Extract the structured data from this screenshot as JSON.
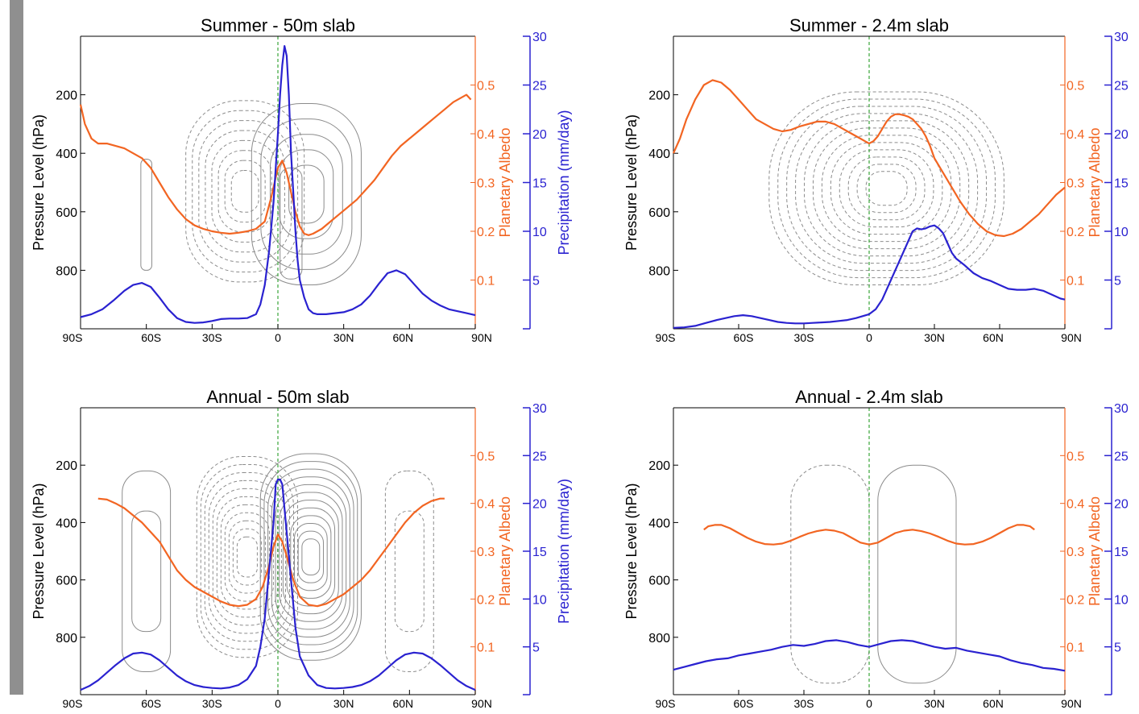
{
  "colors": {
    "albedo": "#f26522",
    "precip": "#2a22d0",
    "contour": "#8c8c8c",
    "equator": "#3aa53a",
    "axis": "#000000"
  },
  "chart_data": [
    {
      "type": "line",
      "title": "Summer - 50m slab",
      "ylabel": "Pressure Level (hPa)",
      "ylabel_albedo": "Planetary Albedo",
      "ylabel_precip": "Precipitation (mm/day)",
      "pressure_ticks": [
        "200",
        "400",
        "600",
        "800"
      ],
      "albedo_ticks": [
        "0.1",
        "0.2",
        "0.3",
        "0.4",
        "0.5"
      ],
      "precip_ticks": [
        "5",
        "10",
        "15",
        "20",
        "25",
        "30"
      ],
      "x_ticks": [
        "90S",
        "60S",
        "30S",
        "0",
        "30N",
        "60N",
        "90N"
      ],
      "xlim": [
        -90,
        90
      ],
      "pressure_lim": [
        0,
        1000
      ],
      "albedo_lim": [
        0,
        0.6
      ],
      "precip_lim": [
        0,
        30
      ],
      "series": [
        {
          "name": "Planetary Albedo",
          "axis": "albedo",
          "x": [
            -90,
            -88,
            -85,
            -82,
            -78,
            -74,
            -70,
            -66,
            -62,
            -58,
            -54,
            -50,
            -46,
            -42,
            -38,
            -34,
            -30,
            -26,
            -22,
            -18,
            -14,
            -10,
            -6,
            -3,
            0,
            2,
            4,
            6,
            8,
            10,
            12,
            14,
            16,
            20,
            24,
            28,
            32,
            36,
            40,
            44,
            48,
            52,
            56,
            60,
            64,
            68,
            72,
            76,
            80,
            84,
            86,
            88
          ],
          "y": [
            0.46,
            0.42,
            0.39,
            0.38,
            0.38,
            0.375,
            0.37,
            0.36,
            0.35,
            0.33,
            0.3,
            0.27,
            0.245,
            0.225,
            0.212,
            0.205,
            0.2,
            0.197,
            0.195,
            0.197,
            0.2,
            0.205,
            0.22,
            0.27,
            0.33,
            0.345,
            0.32,
            0.28,
            0.24,
            0.21,
            0.195,
            0.192,
            0.195,
            0.205,
            0.22,
            0.235,
            0.25,
            0.265,
            0.285,
            0.305,
            0.33,
            0.355,
            0.375,
            0.39,
            0.405,
            0.42,
            0.435,
            0.45,
            0.465,
            0.475,
            0.48,
            0.47
          ]
        },
        {
          "name": "Precipitation",
          "axis": "precip",
          "x": [
            -90,
            -85,
            -80,
            -75,
            -70,
            -66,
            -62,
            -58,
            -54,
            -50,
            -46,
            -42,
            -38,
            -34,
            -30,
            -26,
            -22,
            -18,
            -14,
            -10,
            -8,
            -6,
            -4,
            -2,
            0,
            1,
            2,
            3,
            4,
            5,
            6,
            7,
            8,
            9,
            10,
            12,
            14,
            16,
            18,
            22,
            26,
            30,
            34,
            38,
            42,
            46,
            50,
            54,
            58,
            62,
            66,
            70,
            74,
            78,
            82,
            86,
            90
          ],
          "y": [
            1.2,
            1.5,
            2.0,
            2.9,
            3.9,
            4.5,
            4.7,
            4.3,
            3.2,
            2.0,
            1.1,
            0.7,
            0.6,
            0.65,
            0.8,
            1.0,
            1.05,
            1.05,
            1.1,
            1.5,
            2.5,
            4.5,
            8,
            13,
            20,
            24,
            27,
            29,
            28,
            24,
            18,
            14,
            10,
            7,
            5,
            3.2,
            2.0,
            1.6,
            1.5,
            1.5,
            1.6,
            1.7,
            2.0,
            2.5,
            3.4,
            4.6,
            5.7,
            6.0,
            5.6,
            4.6,
            3.6,
            2.9,
            2.4,
            2.0,
            1.8,
            1.6,
            1.4
          ]
        }
      ]
    },
    {
      "type": "line",
      "title": "Summer - 2.4m slab",
      "ylabel": "Pressure Level (hPa)",
      "ylabel_albedo": "Planetary Albedo",
      "ylabel_precip": "",
      "pressure_ticks": [
        "200",
        "400",
        "600",
        "800"
      ],
      "albedo_ticks": [
        "0.1",
        "0.2",
        "0.3",
        "0.4",
        "0.5"
      ],
      "precip_ticks": [
        "5",
        "10",
        "15",
        "20",
        "25",
        "30"
      ],
      "x_ticks": [
        "90S",
        "60S",
        "30S",
        "0",
        "30N",
        "60N",
        "90N"
      ],
      "xlim": [
        -90,
        90
      ],
      "pressure_lim": [
        0,
        1000
      ],
      "albedo_lim": [
        0,
        0.6
      ],
      "precip_lim": [
        0,
        30
      ],
      "series": [
        {
          "name": "Planetary Albedo",
          "axis": "albedo",
          "x": [
            -90,
            -87,
            -84,
            -80,
            -76,
            -72,
            -68,
            -64,
            -60,
            -56,
            -52,
            -48,
            -44,
            -40,
            -36,
            -32,
            -28,
            -24,
            -20,
            -16,
            -12,
            -8,
            -4,
            -2,
            0,
            2,
            4,
            6,
            8,
            10,
            12,
            14,
            16,
            18,
            20,
            22,
            24,
            26,
            28,
            30,
            34,
            38,
            42,
            46,
            50,
            54,
            58,
            62,
            66,
            70,
            74,
            78,
            82,
            86,
            90
          ],
          "y": [
            0.36,
            0.39,
            0.43,
            0.47,
            0.5,
            0.51,
            0.505,
            0.49,
            0.47,
            0.45,
            0.43,
            0.42,
            0.41,
            0.405,
            0.408,
            0.415,
            0.42,
            0.425,
            0.425,
            0.42,
            0.41,
            0.4,
            0.39,
            0.385,
            0.38,
            0.385,
            0.395,
            0.41,
            0.425,
            0.435,
            0.44,
            0.44,
            0.438,
            0.435,
            0.43,
            0.42,
            0.41,
            0.395,
            0.375,
            0.35,
            0.32,
            0.29,
            0.26,
            0.235,
            0.215,
            0.2,
            0.192,
            0.19,
            0.195,
            0.205,
            0.22,
            0.235,
            0.255,
            0.275,
            0.29
          ]
        },
        {
          "name": "Precipitation",
          "axis": "precip",
          "x": [
            -90,
            -85,
            -80,
            -75,
            -70,
            -66,
            -62,
            -58,
            -54,
            -50,
            -46,
            -42,
            -38,
            -34,
            -30,
            -26,
            -22,
            -18,
            -14,
            -10,
            -6,
            -3,
            0,
            3,
            6,
            9,
            12,
            15,
            18,
            20,
            22,
            24,
            26,
            28,
            30,
            32,
            34,
            36,
            38,
            40,
            44,
            48,
            52,
            56,
            60,
            64,
            68,
            72,
            76,
            80,
            84,
            88,
            90
          ],
          "y": [
            0.1,
            0.15,
            0.3,
            0.6,
            0.9,
            1.1,
            1.3,
            1.4,
            1.3,
            1.1,
            0.9,
            0.7,
            0.6,
            0.55,
            0.55,
            0.6,
            0.65,
            0.7,
            0.8,
            0.9,
            1.1,
            1.3,
            1.5,
            2,
            3,
            4.5,
            6,
            7.5,
            9,
            10,
            10.3,
            10.2,
            10.3,
            10.5,
            10.6,
            10.3,
            9.8,
            8.8,
            7.8,
            7.2,
            6.5,
            5.7,
            5.2,
            4.9,
            4.5,
            4.1,
            4.0,
            4.0,
            4.1,
            3.9,
            3.5,
            3.1,
            3.0
          ]
        }
      ]
    },
    {
      "type": "line",
      "title": "Annual - 50m slab",
      "ylabel": "Pressure Level (hPa)",
      "ylabel_albedo": "Planetary Albedo",
      "ylabel_precip": "Precipitation (mm/day)",
      "pressure_ticks": [
        "200",
        "400",
        "600",
        "800"
      ],
      "albedo_ticks": [
        "0.1",
        "0.2",
        "0.3",
        "0.4",
        "0.5"
      ],
      "precip_ticks": [
        "5",
        "10",
        "15",
        "20",
        "25",
        "30"
      ],
      "x_ticks": [
        "90S",
        "60S",
        "30S",
        "0",
        "30N",
        "60N",
        "90N"
      ],
      "xlim": [
        -90,
        90
      ],
      "pressure_lim": [
        0,
        1000
      ],
      "albedo_lim": [
        0,
        0.6
      ],
      "precip_lim": [
        0,
        30
      ],
      "series": [
        {
          "name": "Planetary Albedo",
          "axis": "albedo",
          "x": [
            -82,
            -78,
            -74,
            -70,
            -66,
            -62,
            -58,
            -54,
            -50,
            -46,
            -42,
            -38,
            -34,
            -30,
            -26,
            -22,
            -18,
            -14,
            -10,
            -7,
            -4,
            -2,
            0,
            2,
            4,
            7,
            10,
            14,
            18,
            22,
            26,
            30,
            34,
            38,
            42,
            46,
            50,
            54,
            58,
            62,
            66,
            70,
            74,
            76
          ],
          "y": [
            0.41,
            0.408,
            0.4,
            0.39,
            0.375,
            0.36,
            0.34,
            0.32,
            0.29,
            0.26,
            0.24,
            0.225,
            0.215,
            0.205,
            0.195,
            0.188,
            0.185,
            0.188,
            0.2,
            0.225,
            0.27,
            0.31,
            0.335,
            0.32,
            0.29,
            0.24,
            0.205,
            0.188,
            0.185,
            0.19,
            0.2,
            0.21,
            0.225,
            0.24,
            0.26,
            0.285,
            0.31,
            0.335,
            0.36,
            0.38,
            0.395,
            0.405,
            0.41,
            0.41
          ]
        },
        {
          "name": "Precipitation",
          "axis": "precip",
          "x": [
            -90,
            -86,
            -82,
            -78,
            -74,
            -70,
            -66,
            -62,
            -58,
            -54,
            -50,
            -46,
            -42,
            -38,
            -34,
            -30,
            -26,
            -22,
            -18,
            -14,
            -10,
            -8,
            -6,
            -4,
            -2,
            -1,
            0,
            1,
            2,
            4,
            6,
            8,
            10,
            14,
            18,
            22,
            26,
            30,
            34,
            38,
            42,
            46,
            50,
            54,
            58,
            62,
            66,
            70,
            74,
            78,
            82,
            86,
            90
          ],
          "y": [
            0.5,
            0.9,
            1.5,
            2.3,
            3.1,
            3.8,
            4.3,
            4.4,
            4.2,
            3.6,
            2.8,
            2.0,
            1.4,
            1.0,
            0.8,
            0.7,
            0.65,
            0.75,
            1.0,
            1.6,
            3.0,
            5.0,
            8,
            13,
            18,
            22,
            22.5,
            22.5,
            22,
            17,
            12,
            7,
            4,
            2,
            1,
            0.7,
            0.65,
            0.7,
            0.8,
            1.0,
            1.4,
            2.0,
            2.8,
            3.6,
            4.2,
            4.4,
            4.3,
            3.8,
            3.1,
            2.3,
            1.5,
            0.9,
            0.5
          ]
        }
      ]
    },
    {
      "type": "line",
      "title": "Annual - 2.4m slab",
      "ylabel": "Pressure Level (hPa)",
      "ylabel_albedo": "Planetary Albedo",
      "ylabel_precip": "",
      "pressure_ticks": [
        "200",
        "400",
        "600",
        "800"
      ],
      "albedo_ticks": [
        "0.1",
        "0.2",
        "0.3",
        "0.4",
        "0.5"
      ],
      "precip_ticks": [
        "5",
        "10",
        "15",
        "20",
        "25",
        "30"
      ],
      "x_ticks": [
        "90S",
        "60S",
        "30S",
        "0",
        "30N",
        "60N",
        "90N"
      ],
      "xlim": [
        -90,
        90
      ],
      "pressure_lim": [
        0,
        1000
      ],
      "albedo_lim": [
        0,
        0.6
      ],
      "precip_lim": [
        0,
        30
      ],
      "series": [
        {
          "name": "Planetary Albedo",
          "axis": "albedo",
          "x": [
            -76,
            -74,
            -71,
            -68,
            -64,
            -60,
            -56,
            -52,
            -48,
            -44,
            -40,
            -36,
            -32,
            -28,
            -24,
            -20,
            -16,
            -12,
            -8,
            -4,
            0,
            4,
            8,
            12,
            16,
            20,
            24,
            28,
            32,
            36,
            40,
            44,
            48,
            52,
            56,
            60,
            64,
            68,
            71,
            74,
            76
          ],
          "y": [
            0.345,
            0.352,
            0.355,
            0.355,
            0.348,
            0.338,
            0.328,
            0.32,
            0.315,
            0.314,
            0.316,
            0.322,
            0.33,
            0.337,
            0.342,
            0.345,
            0.343,
            0.338,
            0.328,
            0.318,
            0.314,
            0.318,
            0.328,
            0.338,
            0.343,
            0.345,
            0.342,
            0.337,
            0.33,
            0.322,
            0.316,
            0.314,
            0.315,
            0.32,
            0.328,
            0.338,
            0.348,
            0.355,
            0.355,
            0.352,
            0.345
          ]
        },
        {
          "name": "Precipitation",
          "axis": "precip",
          "x": [
            -90,
            -85,
            -80,
            -75,
            -70,
            -65,
            -60,
            -55,
            -50,
            -45,
            -40,
            -35,
            -30,
            -25,
            -20,
            -15,
            -10,
            -5,
            0,
            5,
            10,
            15,
            20,
            25,
            30,
            35,
            40,
            45,
            50,
            55,
            60,
            65,
            70,
            75,
            80,
            85,
            90
          ],
          "y": [
            2.6,
            2.9,
            3.2,
            3.5,
            3.7,
            3.8,
            4.1,
            4.3,
            4.5,
            4.7,
            5.0,
            5.2,
            5.1,
            5.3,
            5.6,
            5.7,
            5.5,
            5.2,
            5.0,
            5.3,
            5.6,
            5.7,
            5.6,
            5.3,
            5.0,
            4.8,
            4.9,
            4.6,
            4.4,
            4.2,
            4.0,
            3.6,
            3.3,
            3.1,
            2.8,
            2.7,
            2.5
          ]
        }
      ]
    }
  ]
}
